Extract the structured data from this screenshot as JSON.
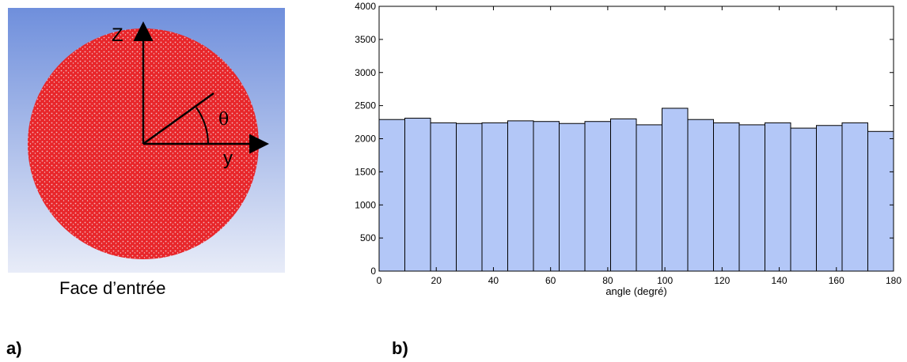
{
  "panel_a": {
    "caption": "Face d’entrée",
    "panel_label": "a)",
    "axis_z": "Z",
    "axis_y": "y",
    "angle_symbol": "θ",
    "background_top_color": "#6f8fdc",
    "background_bottom_color": "#e8ecf8",
    "disc_color": "#e8262a"
  },
  "panel_b": {
    "panel_label": "b)"
  },
  "chart_data": {
    "type": "bar",
    "title": "",
    "xlabel": "angle (degré)",
    "ylabel": "",
    "xlim": [
      0,
      180
    ],
    "ylim": [
      0,
      4000
    ],
    "x_ticks": [
      0,
      20,
      40,
      60,
      80,
      100,
      120,
      140,
      160,
      180
    ],
    "y_ticks": [
      0,
      500,
      1000,
      1500,
      2000,
      2500,
      3000,
      3500,
      4000
    ],
    "bin_width": 9,
    "bin_edges_start": [
      0,
      9,
      18,
      27,
      36,
      45,
      54,
      63,
      72,
      81,
      90,
      99,
      108,
      117,
      126,
      135,
      144,
      153,
      162,
      171
    ],
    "values": [
      2290,
      2310,
      2240,
      2230,
      2240,
      2270,
      2260,
      2230,
      2260,
      2300,
      2210,
      2460,
      2290,
      2240,
      2210,
      2240,
      2160,
      2200,
      2240,
      2110
    ],
    "bar_color": "#b3c7f7",
    "bar_edge_color": "#000000",
    "grid": false
  }
}
